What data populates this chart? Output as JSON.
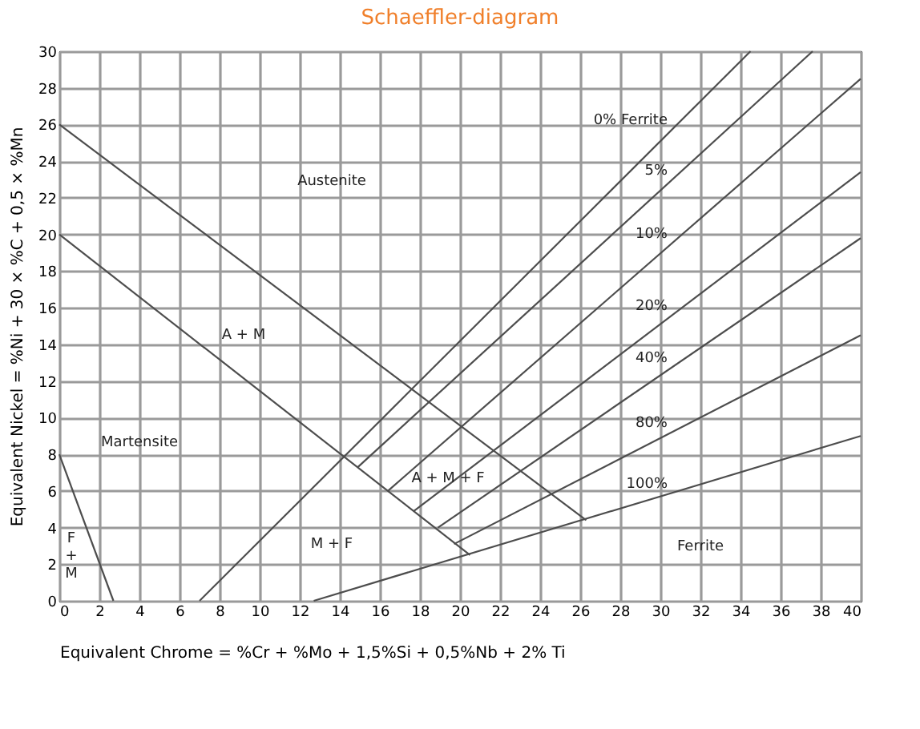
{
  "chart_data": {
    "type": "line",
    "title": "Schaeffler-diagram",
    "xlabel": "Equivalent Chrome = %Cr + %Mo + 1,5%Si + 0,5%Nb + 2% Ti",
    "ylabel": "Equivalent Nickel = %Ni + 30 × %C + 0,5 × %Mn",
    "xlim": [
      0,
      40
    ],
    "ylim": [
      0,
      30
    ],
    "xticks": [
      0,
      2,
      4,
      6,
      8,
      10,
      12,
      14,
      16,
      18,
      20,
      22,
      24,
      26,
      28,
      30,
      32,
      34,
      36,
      38,
      40
    ],
    "yticks": [
      0,
      2,
      4,
      6,
      8,
      10,
      12,
      14,
      16,
      18,
      20,
      22,
      24,
      26,
      28,
      30
    ],
    "grid": true,
    "legend": false,
    "marker": "none",
    "line_style": "solid",
    "series": [
      {
        "color": "#4d4d4d",
        "x": [
          0,
          26.3
        ],
        "values": [
          26,
          4.4
        ]
      },
      {
        "color": "#4d4d4d",
        "x": [
          0,
          20.5
        ],
        "values": [
          20,
          2.5
        ]
      },
      {
        "color": "#4d4d4d",
        "x": [
          0,
          2.7
        ],
        "values": [
          8,
          0
        ]
      },
      {
        "name": "0% Ferrite",
        "color": "#4d4d4d",
        "x": [
          7,
          34.5
        ],
        "values": [
          0,
          30
        ]
      },
      {
        "name": "5%",
        "color": "#4d4d4d",
        "x": [
          14.9,
          37.6
        ],
        "values": [
          7.3,
          30
        ]
      },
      {
        "name": "10%",
        "color": "#4d4d4d",
        "x": [
          16.4,
          40
        ],
        "values": [
          6.0,
          28.5
        ]
      },
      {
        "name": "20%",
        "color": "#4d4d4d",
        "x": [
          17.7,
          40
        ],
        "values": [
          4.9,
          23.4
        ]
      },
      {
        "name": "40%",
        "color": "#4d4d4d",
        "x": [
          18.9,
          40
        ],
        "values": [
          4.0,
          19.8
        ]
      },
      {
        "name": "80%",
        "color": "#4d4d4d",
        "x": [
          19.7,
          40
        ],
        "values": [
          3.1,
          14.5
        ]
      },
      {
        "name": "100%",
        "color": "#4d4d4d",
        "x": [
          12.7,
          40
        ],
        "values": [
          0,
          9.0
        ]
      }
    ],
    "annotations": [
      "Austenite",
      "A + M",
      "Martensite",
      "A + M + F",
      "M + F",
      "F\n+\nM",
      "Ferrite"
    ]
  }
}
